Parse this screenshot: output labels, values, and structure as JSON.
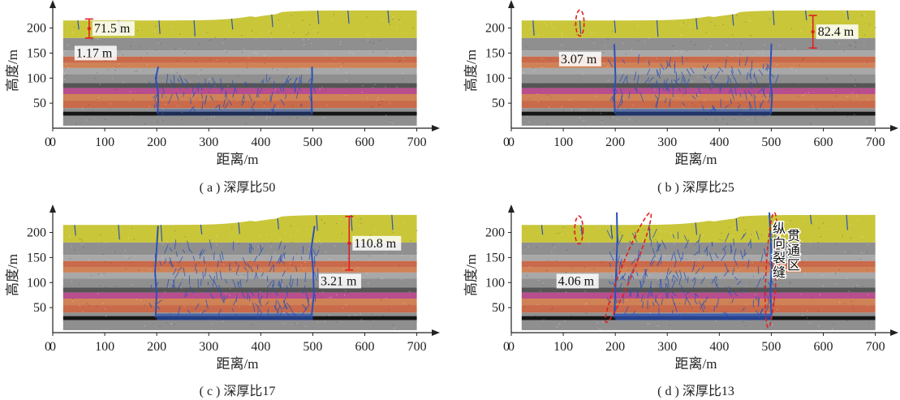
{
  "colors": {
    "topsoil": "#c9c63a",
    "gray": "#8f8f8f",
    "light_gray": "#a8a8a8",
    "red": "#c96a4a",
    "orange": "#cf8256",
    "magenta": "#b84e8e",
    "dark": "#555555",
    "coal": "#161616",
    "crack": "#2c52b8",
    "annotation": "#e02020"
  },
  "chart_data": [
    {
      "type": "scatter",
      "caption": "( a ) 深厚比50",
      "xlabel": "距离/m",
      "ylabel": "高度/m",
      "xlim": [
        0,
        710
      ],
      "ylim": [
        0,
        230
      ],
      "xticks": [
        "0",
        "100",
        "200",
        "300",
        "400",
        "500",
        "600",
        "700"
      ],
      "yticks": [
        "50",
        "100",
        "150",
        "200"
      ],
      "goaf": [
        200,
        500
      ],
      "annotations": [
        {
          "text": "71.5 m",
          "kind": "bracket",
          "x": 70,
          "y1": 180,
          "y2": 218
        },
        {
          "text": "1.17 m",
          "kind": "label",
          "x": 45,
          "y": 150
        }
      ],
      "ellipses": []
    },
    {
      "type": "scatter",
      "caption": "( b ) 深厚比25",
      "xlabel": "距离/m",
      "ylabel": "高度/m",
      "xlim": [
        0,
        710
      ],
      "ylim": [
        0,
        230
      ],
      "xticks": [
        "0",
        "100",
        "200",
        "300",
        "400",
        "500",
        "600",
        "700"
      ],
      "yticks": [
        "50",
        "100",
        "150",
        "200"
      ],
      "goaf": [
        200,
        500
      ],
      "annotations": [
        {
          "text": "82.4 m",
          "kind": "bracket",
          "x": 580,
          "y1": 160,
          "y2": 225
        },
        {
          "text": "3.07 m",
          "kind": "label",
          "x": 95,
          "y": 138
        }
      ],
      "ellipses": [
        {
          "cx": 132,
          "cy": 210,
          "rx": 8,
          "ry": 26
        }
      ]
    },
    {
      "type": "scatter",
      "caption": "( c ) 深厚比17",
      "xlabel": "距离/m",
      "ylabel": "高度/m",
      "xlim": [
        0,
        710
      ],
      "ylim": [
        0,
        230
      ],
      "xticks": [
        "0",
        "100",
        "200",
        "300",
        "400",
        "500",
        "600",
        "700"
      ],
      "yticks": [
        "50",
        "100",
        "150",
        "200"
      ],
      "goaf": [
        200,
        500
      ],
      "annotations": [
        {
          "text": "110.8 m",
          "kind": "bracket",
          "x": 570,
          "y1": 125,
          "y2": 232
        },
        {
          "text": "3.21 m",
          "kind": "label",
          "x": 515,
          "y": 103
        }
      ],
      "ellipses": []
    },
    {
      "type": "scatter",
      "caption": "( d ) 深厚比13",
      "xlabel": "距离/m",
      "ylabel": "高度/m",
      "xlim": [
        0,
        710
      ],
      "ylim": [
        0,
        230
      ],
      "xticks": [
        "0",
        "100",
        "200",
        "300",
        "400",
        "500",
        "600",
        "700"
      ],
      "yticks": [
        "50",
        "100",
        "150",
        "200"
      ],
      "goaf": [
        200,
        500
      ],
      "annotations": [
        {
          "text": "4.06 m",
          "kind": "label",
          "x": 90,
          "y": 103
        },
        {
          "text": "纵向裂缝贯通区",
          "kind": "vertical",
          "x": 515,
          "y": 105
        }
      ],
      "ellipses": [
        {
          "cx": 130,
          "cy": 205,
          "rx": 8,
          "ry": 28
        },
        {
          "cx": 225,
          "cy": 130,
          "rx": 12,
          "ry": 118,
          "rot": 22
        },
        {
          "cx": 500,
          "cy": 125,
          "rx": 10,
          "ry": 115,
          "rot": 3
        }
      ]
    }
  ]
}
